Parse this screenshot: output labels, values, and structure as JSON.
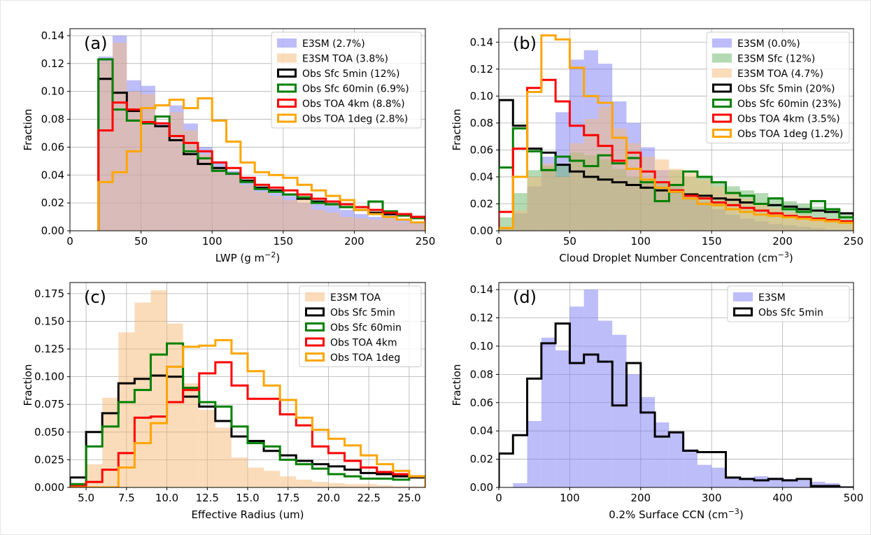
{
  "chart_data": [
    {
      "type": "histogram",
      "panel_label": "(a)",
      "xlabel": "LWP (g m",
      "xlabel_sup": "−2",
      "xlabel_end": ")",
      "ylabel": "Fraction",
      "xlim": [
        0,
        250
      ],
      "ylim": [
        0,
        0.145
      ],
      "xticks": [
        0,
        50,
        100,
        150,
        200,
        250
      ],
      "xtick_labels": [
        "0",
        "50",
        "100",
        "150",
        "200",
        "250"
      ],
      "yticks": [
        0,
        0.02,
        0.04,
        0.06,
        0.08,
        0.1,
        0.12,
        0.14
      ],
      "ytick_labels": [
        "0.00",
        "0.02",
        "0.04",
        "0.06",
        "0.08",
        "0.10",
        "0.12",
        "0.14"
      ],
      "grid": true,
      "legend_position": "top-right",
      "bin_edges": [
        20,
        30,
        40,
        50,
        60,
        70,
        80,
        90,
        100,
        110,
        120,
        130,
        140,
        150,
        160,
        170,
        180,
        190,
        200,
        210,
        220,
        230,
        240,
        250
      ],
      "series": [
        {
          "name": "E3SM (2.7%)",
          "style": "fill",
          "color": "#7b7bf5",
          "values": [
            0.125,
            0.14,
            0.108,
            0.104,
            0.078,
            0.09,
            0.077,
            0.06,
            0.05,
            0.043,
            0.035,
            0.03,
            0.027,
            0.025,
            0.02,
            0.02,
            0.018,
            0.015,
            0.012,
            0.01,
            0.012,
            0.008,
            0.006
          ]
        },
        {
          "name": "E3SM TOA (3.8%)",
          "style": "fill",
          "color": "#f5ba78",
          "values": [
            0.122,
            0.135,
            0.1,
            0.098,
            0.075,
            0.085,
            0.072,
            0.055,
            0.046,
            0.04,
            0.033,
            0.028,
            0.025,
            0.022,
            0.023,
            0.015,
            0.013,
            0.01,
            0.009,
            0.008,
            0.009,
            0.006,
            0.005
          ]
        },
        {
          "name": "Obs Sfc 5min (12%)",
          "style": "step",
          "color": "#000000",
          "values": [
            0.109,
            0.099,
            0.086,
            0.078,
            0.075,
            0.065,
            0.055,
            0.048,
            0.045,
            0.041,
            0.036,
            0.031,
            0.029,
            0.026,
            0.023,
            0.021,
            0.019,
            0.017,
            0.015,
            0.013,
            0.012,
            0.011,
            0.01
          ]
        },
        {
          "name": "Obs Sfc 60min (6.9%)",
          "style": "step",
          "color": "#008000",
          "values": [
            0.123,
            0.087,
            0.079,
            0.077,
            0.082,
            0.068,
            0.057,
            0.052,
            0.043,
            0.041,
            0.035,
            0.03,
            0.028,
            0.026,
            0.024,
            0.02,
            0.019,
            0.017,
            0.015,
            0.021,
            0.014,
            0.011,
            0.009
          ]
        },
        {
          "name": "Obs TOA 4km (8.8%)",
          "style": "step",
          "color": "#ff0000",
          "values": [
            0.072,
            0.092,
            0.087,
            0.078,
            0.077,
            0.068,
            0.063,
            0.057,
            0.049,
            0.045,
            0.038,
            0.033,
            0.031,
            0.029,
            0.026,
            0.023,
            0.021,
            0.019,
            0.017,
            0.015,
            0.013,
            0.012,
            0.01
          ]
        },
        {
          "name": "Obs TOA 1deg (2.8%)",
          "style": "step",
          "color": "#ffa500",
          "values": [
            0.035,
            0.042,
            0.057,
            0.088,
            0.09,
            0.094,
            0.088,
            0.095,
            0.079,
            0.064,
            0.049,
            0.042,
            0.04,
            0.038,
            0.033,
            0.029,
            0.025,
            0.022,
            0.015,
            0.012,
            0.01,
            0.008,
            0.006
          ]
        }
      ]
    },
    {
      "type": "histogram",
      "panel_label": "(b)",
      "xlabel": "Cloud Droplet Number Concentration (cm",
      "xlabel_sup": "−3",
      "xlabel_end": ")",
      "ylabel": "Fraction",
      "xlim": [
        0,
        250
      ],
      "ylim": [
        0,
        0.15
      ],
      "xticks": [
        0,
        50,
        100,
        150,
        200,
        250
      ],
      "xtick_labels": [
        "0",
        "50",
        "100",
        "150",
        "200",
        "250"
      ],
      "yticks": [
        0,
        0.02,
        0.04,
        0.06,
        0.08,
        0.1,
        0.12,
        0.14
      ],
      "ytick_labels": [
        "0.00",
        "0.02",
        "0.04",
        "0.06",
        "0.08",
        "0.10",
        "0.12",
        "0.14"
      ],
      "grid": true,
      "legend_position": "top-right",
      "bin_edges": [
        0,
        10,
        20,
        30,
        40,
        50,
        60,
        70,
        80,
        90,
        100,
        110,
        120,
        130,
        140,
        150,
        160,
        170,
        180,
        190,
        200,
        210,
        220,
        230,
        240,
        250
      ],
      "series": [
        {
          "name": "E3SM (0.0%)",
          "style": "fill",
          "color": "#7b7bf5",
          "values": [
            0.002,
            0.013,
            0.033,
            0.055,
            0.088,
            0.127,
            0.134,
            0.124,
            0.096,
            0.08,
            0.062,
            0.045,
            0.035,
            0.028,
            0.022,
            0.016,
            0.012,
            0.009,
            0.007,
            0.005,
            0.004,
            0.003,
            0.002,
            0.001,
            0.001
          ]
        },
        {
          "name": "E3SM Sfc (12%)",
          "style": "fill",
          "color": "#6ab66a",
          "values": [
            0.01,
            0.028,
            0.045,
            0.048,
            0.049,
            0.058,
            0.056,
            0.053,
            0.046,
            0.04,
            0.038,
            0.035,
            0.045,
            0.04,
            0.04,
            0.036,
            0.033,
            0.03,
            0.028,
            0.025,
            0.022,
            0.02,
            0.018,
            0.016,
            0.013
          ]
        },
        {
          "name": "E3SM TOA (4.7%)",
          "style": "fill",
          "color": "#f5ba78",
          "values": [
            0.003,
            0.015,
            0.04,
            0.05,
            0.04,
            0.065,
            0.083,
            0.092,
            0.076,
            0.065,
            0.055,
            0.053,
            0.046,
            0.043,
            0.038,
            0.033,
            0.029,
            0.024,
            0.02,
            0.017,
            0.014,
            0.012,
            0.01,
            0.008,
            0.007
          ]
        },
        {
          "name": "Obs Sfc 5min (20%)",
          "style": "step",
          "color": "#000000",
          "values": [
            0.097,
            0.078,
            0.061,
            0.058,
            0.049,
            0.044,
            0.04,
            0.038,
            0.036,
            0.034,
            0.032,
            0.03,
            0.029,
            0.027,
            0.026,
            0.024,
            0.023,
            0.021,
            0.02,
            0.019,
            0.018,
            0.016,
            0.015,
            0.014,
            0.013
          ]
        },
        {
          "name": "Obs Sfc 60min (23%)",
          "style": "step",
          "color": "#008000",
          "values": [
            0.047,
            0.076,
            0.059,
            0.045,
            0.055,
            0.052,
            0.048,
            0.056,
            0.05,
            0.054,
            0.036,
            0.022,
            0.034,
            0.044,
            0.04,
            0.036,
            0.028,
            0.026,
            0.02,
            0.024,
            0.016,
            0.014,
            0.022,
            0.016,
            0.01
          ]
        },
        {
          "name": "Obs TOA 4km (3.5%)",
          "style": "step",
          "color": "#ff0000",
          "values": [
            0.014,
            0.061,
            0.106,
            0.112,
            0.096,
            0.078,
            0.071,
            0.063,
            0.052,
            0.058,
            0.044,
            0.036,
            0.03,
            0.026,
            0.024,
            0.021,
            0.019,
            0.017,
            0.015,
            0.013,
            0.011,
            0.01,
            0.009,
            0.008,
            0.007
          ]
        },
        {
          "name": "Obs TOA 1deg (1.2%)",
          "style": "step",
          "color": "#ffa500",
          "values": [
            0.002,
            0.04,
            0.103,
            0.145,
            0.142,
            0.121,
            0.1,
            0.095,
            0.069,
            0.046,
            0.038,
            0.032,
            0.029,
            0.024,
            0.02,
            0.019,
            0.016,
            0.014,
            0.012,
            0.011,
            0.01,
            0.009,
            0.008,
            0.007,
            0.006
          ]
        }
      ]
    },
    {
      "type": "histogram",
      "panel_label": "(c)",
      "xlabel": "Effective Radius (um)",
      "xlabel_sup": "",
      "xlabel_end": "",
      "ylabel": "Fraction",
      "xlim": [
        4,
        26
      ],
      "ylim": [
        0,
        0.185
      ],
      "xticks": [
        5,
        7.5,
        10,
        12.5,
        15,
        17.5,
        20,
        22.5,
        25
      ],
      "xtick_labels": [
        "5.0",
        "7.5",
        "10.0",
        "12.5",
        "15.0",
        "17.5",
        "20.0",
        "22.5",
        "25.0"
      ],
      "yticks": [
        0,
        0.025,
        0.05,
        0.075,
        0.1,
        0.125,
        0.15,
        0.175
      ],
      "ytick_labels": [
        "0.000",
        "0.025",
        "0.050",
        "0.075",
        "0.100",
        "0.125",
        "0.150",
        "0.175"
      ],
      "grid": true,
      "legend_position": "top-right",
      "bin_edges": [
        4,
        5,
        6,
        7,
        8,
        9,
        10,
        11,
        12,
        13,
        14,
        15,
        16,
        17,
        18,
        19,
        20,
        21,
        22,
        23,
        24,
        25,
        26
      ],
      "series": [
        {
          "name": "E3SM TOA",
          "style": "fill",
          "color": "#f5ba78",
          "values": [
            0.003,
            0.021,
            0.081,
            0.14,
            0.167,
            0.178,
            0.148,
            0.094,
            0.07,
            0.054,
            0.027,
            0.018,
            0.015,
            0.01,
            0.007,
            0.005,
            0.004,
            0.003,
            0.003,
            0.002,
            0.001,
            0.001
          ]
        },
        {
          "name": "Obs Sfc 5min",
          "style": "step",
          "color": "#000000",
          "values": [
            0.009,
            0.05,
            0.067,
            0.094,
            0.098,
            0.101,
            0.1,
            0.082,
            0.073,
            0.06,
            0.046,
            0.042,
            0.033,
            0.029,
            0.024,
            0.021,
            0.019,
            0.016,
            0.013,
            0.012,
            0.01,
            0.009
          ]
        },
        {
          "name": "Obs Sfc 60min",
          "style": "step",
          "color": "#008000",
          "values": [
            0.003,
            0.037,
            0.055,
            0.077,
            0.088,
            0.12,
            0.13,
            0.09,
            0.077,
            0.073,
            0.055,
            0.04,
            0.037,
            0.025,
            0.021,
            0.017,
            0.012,
            0.01,
            0.008,
            0.008,
            0.007,
            0.01
          ]
        },
        {
          "name": "Obs TOA 4km",
          "style": "step",
          "color": "#ff0000",
          "values": [
            0.001,
            0.005,
            0.016,
            0.031,
            0.063,
            0.064,
            0.077,
            0.088,
            0.103,
            0.113,
            0.092,
            0.08,
            0.08,
            0.066,
            0.056,
            0.037,
            0.031,
            0.024,
            0.018,
            0.014,
            0.012,
            0.01
          ]
        },
        {
          "name": "Obs TOA 1deg",
          "style": "step",
          "color": "#ffa500",
          "values": [
            0.0,
            0.0,
            0.0,
            0.018,
            0.04,
            0.058,
            0.109,
            0.127,
            0.128,
            0.133,
            0.121,
            0.105,
            0.092,
            0.079,
            0.063,
            0.052,
            0.044,
            0.038,
            0.029,
            0.021,
            0.015,
            0.01
          ]
        }
      ]
    },
    {
      "type": "histogram",
      "panel_label": "(d)",
      "xlabel": "0.2% Surface CCN (cm",
      "xlabel_sup": "−3",
      "xlabel_end": ")",
      "ylabel": "Fraction",
      "xlim": [
        0,
        500
      ],
      "ylim": [
        0,
        0.145
      ],
      "xticks": [
        0,
        100,
        200,
        300,
        400,
        500
      ],
      "xtick_labels": [
        "0",
        "100",
        "200",
        "300",
        "400",
        "500"
      ],
      "yticks": [
        0,
        0.02,
        0.04,
        0.06,
        0.08,
        0.1,
        0.12,
        0.14
      ],
      "ytick_labels": [
        "0.00",
        "0.02",
        "0.04",
        "0.06",
        "0.08",
        "0.10",
        "0.12",
        "0.14"
      ],
      "grid": true,
      "legend_position": "top-right",
      "bin_edges": [
        0,
        20,
        40,
        60,
        80,
        100,
        120,
        140,
        160,
        180,
        200,
        220,
        240,
        260,
        280,
        300,
        320,
        340,
        360,
        380,
        400,
        420,
        440,
        460,
        480,
        500
      ],
      "series": [
        {
          "name": "E3SM",
          "style": "fill",
          "color": "#7b7bf5",
          "values": [
            0.0,
            0.003,
            0.047,
            0.106,
            0.097,
            0.128,
            0.14,
            0.118,
            0.108,
            0.08,
            0.064,
            0.046,
            0.039,
            0.027,
            0.016,
            0.014,
            0.007,
            0.007,
            0.008,
            0.007,
            0.006,
            0.005,
            0.004,
            0.003,
            0.0
          ]
        },
        {
          "name": "Obs Sfc 5min",
          "style": "step",
          "color": "#000000",
          "values": [
            0.024,
            0.037,
            0.077,
            0.102,
            0.116,
            0.088,
            0.094,
            0.089,
            0.058,
            0.088,
            0.053,
            0.036,
            0.039,
            0.026,
            0.025,
            0.025,
            0.007,
            0.006,
            0.005,
            0.006,
            0.005,
            0.006,
            0.001,
            0.001,
            0.0
          ]
        }
      ]
    }
  ]
}
